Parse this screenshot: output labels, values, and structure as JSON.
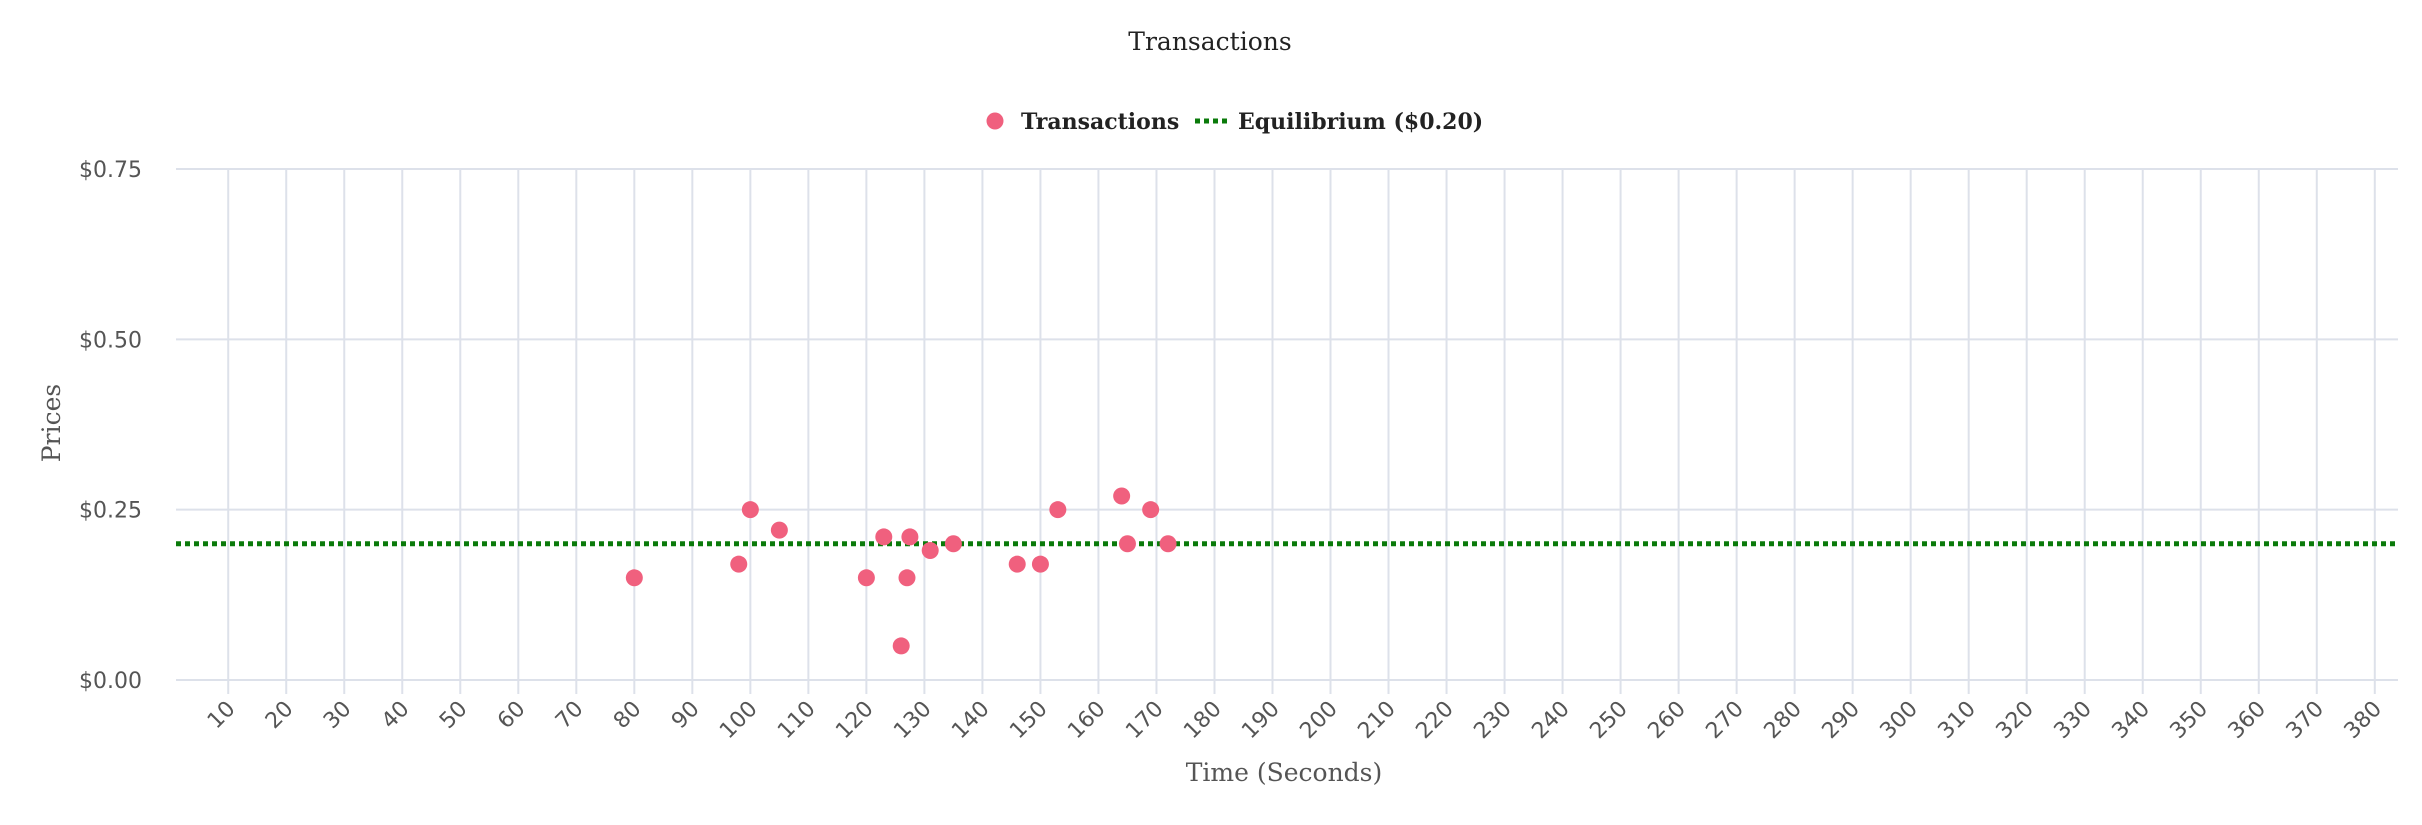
{
  "chart_data": {
    "type": "scatter",
    "title": "Transactions",
    "xlabel": "Time (Seconds)",
    "ylabel": "Prices",
    "x_ticks": [
      "10",
      "20",
      "30",
      "40",
      "50",
      "60",
      "70",
      "80",
      "90",
      "100",
      "110",
      "120",
      "130",
      "140",
      "150",
      "160",
      "170",
      "180",
      "190",
      "200",
      "210",
      "220",
      "230",
      "240",
      "250",
      "260",
      "270",
      "280",
      "290",
      "300",
      "310",
      "320",
      "330",
      "340",
      "350",
      "360",
      "370",
      "380"
    ],
    "y_ticks": [
      "$0.00",
      "$0.25",
      "$0.50",
      "$0.75"
    ],
    "xlim": [
      1,
      384
    ],
    "ylim": [
      0,
      0.75
    ],
    "grid": true,
    "legend_position": "top-center",
    "series": [
      {
        "name": "Transactions",
        "kind": "points",
        "color": "#f0607e",
        "points": [
          [
            80,
            0.15
          ],
          [
            98,
            0.17
          ],
          [
            100,
            0.25
          ],
          [
            105,
            0.22
          ],
          [
            120,
            0.15
          ],
          [
            123,
            0.21
          ],
          [
            126,
            0.05
          ],
          [
            127,
            0.15
          ],
          [
            127.5,
            0.21
          ],
          [
            131,
            0.19
          ],
          [
            135,
            0.2
          ],
          [
            146,
            0.17
          ],
          [
            150,
            0.17
          ],
          [
            153,
            0.25
          ],
          [
            164,
            0.27
          ],
          [
            165,
            0.2
          ],
          [
            169,
            0.25
          ],
          [
            172,
            0.2
          ]
        ]
      },
      {
        "name": "Equilibrium ($0.20)",
        "kind": "horizontal-line",
        "style": "dotted",
        "color": "#0a7a0a",
        "value": 0.2
      }
    ],
    "colors": {
      "grid": "#dde1ea",
      "axis_text": "#555555"
    }
  }
}
